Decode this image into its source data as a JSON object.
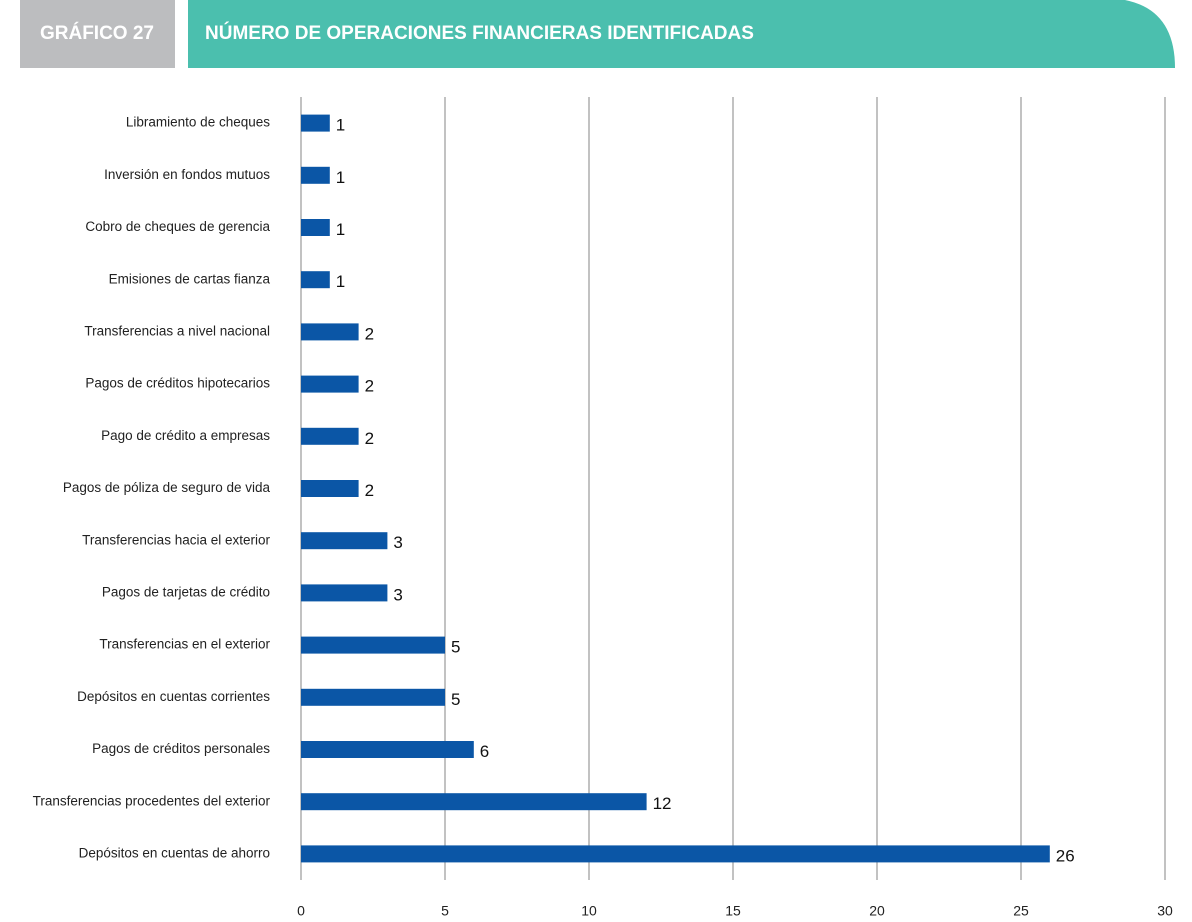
{
  "chart_data": {
    "type": "bar",
    "orientation": "horizontal",
    "chart_number": "GRÁFICO 27",
    "title": "NÚMERO DE OPERACIONES FINANCIERAS IDENTIFICADAS",
    "categories": [
      "Libramiento de cheques",
      "Inversión en fondos mutuos",
      "Cobro de cheques de gerencia",
      "Emisiones de cartas fianza",
      "Transferencias a nivel nacional",
      "Pagos de créditos hipotecarios",
      "Pago de crédito a empresas",
      "Pagos de póliza de seguro de vida",
      "Transferencias hacia el exterior",
      "Pagos de tarjetas de crédito",
      "Transferencias en el exterior",
      "Depósitos en cuentas corrientes",
      "Pagos de créditos personales",
      "Transferencias procedentes del exterior",
      "Depósitos en cuentas de ahorro"
    ],
    "values": [
      1,
      1,
      1,
      1,
      2,
      2,
      2,
      2,
      3,
      3,
      5,
      5,
      6,
      12,
      26
    ],
    "color": "#0b56a6",
    "xlim": [
      0,
      30
    ],
    "xticks": [
      0,
      5,
      10,
      15,
      20,
      25,
      30
    ],
    "grid": true
  }
}
